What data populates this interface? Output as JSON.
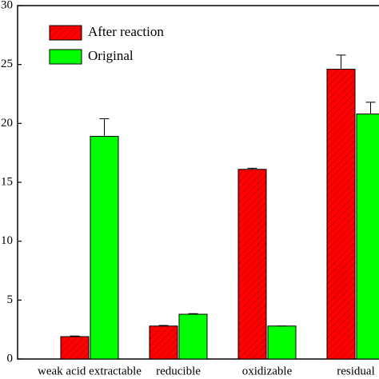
{
  "chart_data": {
    "type": "bar",
    "categories": [
      "weak acid extractable",
      "reducible",
      "oxidizable",
      "residual"
    ],
    "series": [
      {
        "name": "After reaction",
        "color": "#ff0000",
        "hatch": true,
        "values": [
          1.9,
          2.8,
          16.1,
          24.6
        ],
        "errors": [
          0.05,
          0.05,
          0.1,
          1.2
        ]
      },
      {
        "name": "Original",
        "color": "#00ff00",
        "hatch": false,
        "values": [
          18.9,
          3.8,
          2.8,
          20.8
        ],
        "errors": [
          1.5,
          0.05,
          0,
          1.0
        ]
      }
    ],
    "ylim": [
      0,
      30
    ],
    "yticks": [
      0,
      5,
      10,
      15,
      20,
      25,
      30
    ],
    "legend": "upper left"
  }
}
